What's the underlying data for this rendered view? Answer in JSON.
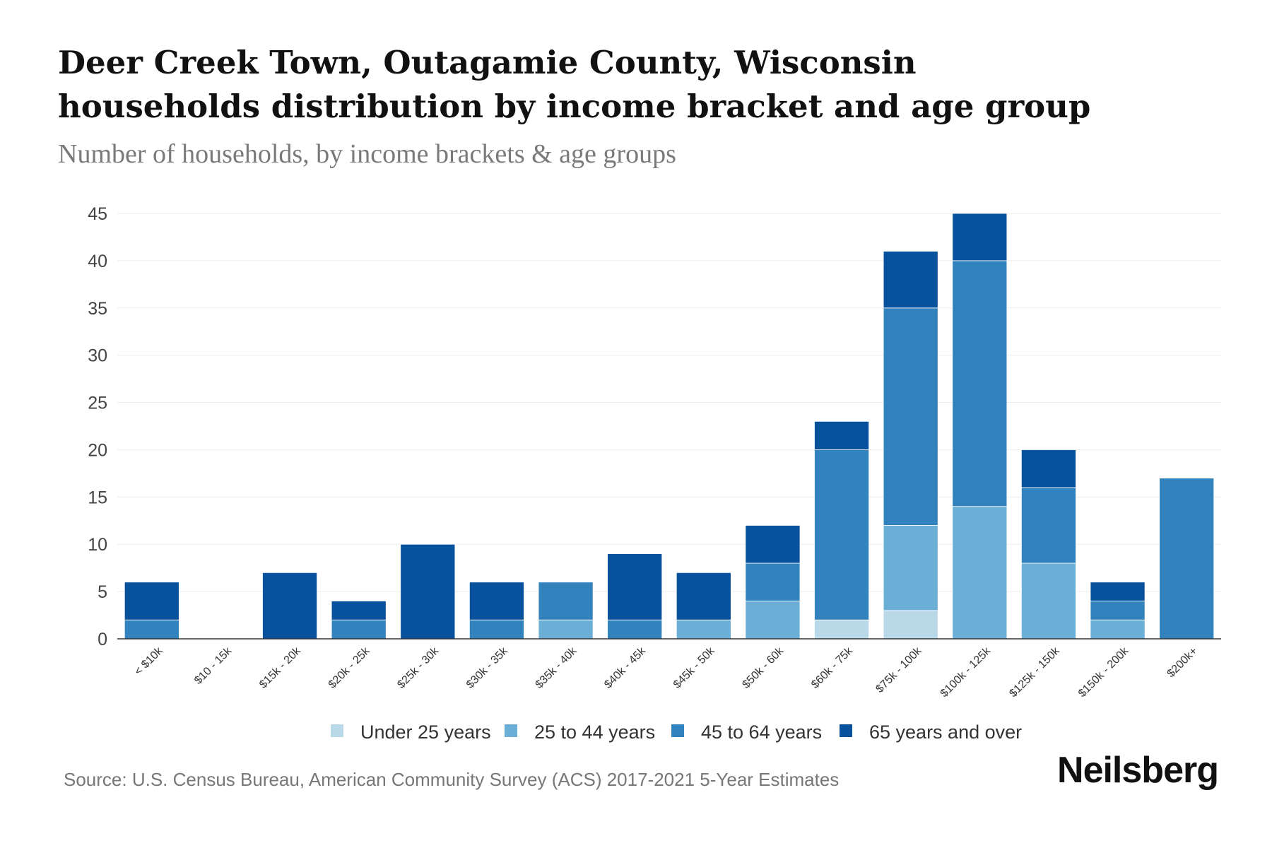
{
  "chart_data": {
    "type": "bar",
    "stacked": true,
    "title": "Deer Creek Town, Outagamie County, Wisconsin households distribution by income bracket and age group",
    "subtitle": "Number of households, by income brackets & age groups",
    "xlabel": "",
    "ylabel": "",
    "ylim": [
      0,
      45
    ],
    "yticks": [
      0,
      5,
      10,
      15,
      20,
      25,
      30,
      35,
      40,
      45
    ],
    "grid": true,
    "legend_position": "bottom",
    "categories": [
      "< $10k",
      "$10 - 15k",
      "$15k - 20k",
      "$20k - 25k",
      "$25k - 30k",
      "$30k - 35k",
      "$35k - 40k",
      "$40k - 45k",
      "$45k - 50k",
      "$50k - 60k",
      "$60k - 75k",
      "$75k - 100k",
      "$100k - 125k",
      "$125k - 150k",
      "$150k - 200k",
      "$200k+"
    ],
    "series": [
      {
        "name": "Under 25 years",
        "color": "#b9d8e8",
        "values": [
          0,
          0,
          0,
          0,
          0,
          0,
          0,
          0,
          0,
          0,
          2,
          3,
          0,
          0,
          0,
          0
        ]
      },
      {
        "name": "25 to 44 years",
        "color": "#6baed6",
        "values": [
          0,
          0,
          0,
          0,
          0,
          0,
          2,
          0,
          2,
          4,
          0,
          9,
          14,
          8,
          2,
          0
        ]
      },
      {
        "name": "45 to 64 years",
        "color": "#3182bd",
        "values": [
          2,
          0,
          0,
          2,
          0,
          2,
          4,
          2,
          0,
          4,
          18,
          23,
          26,
          8,
          2,
          17
        ]
      },
      {
        "name": "65 years and over",
        "color": "#08519c",
        "values": [
          4,
          0,
          7,
          2,
          10,
          4,
          0,
          7,
          5,
          4,
          3,
          6,
          5,
          4,
          2,
          0
        ]
      }
    ]
  },
  "source": "Source: U.S. Census Bureau, American Community Survey (ACS) 2017-2021 5-Year Estimates",
  "brand": "Neilsberg"
}
